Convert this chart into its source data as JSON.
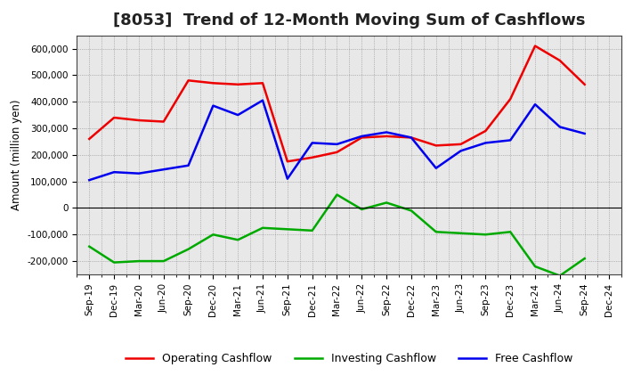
{
  "title": "[8053]  Trend of 12-Month Moving Sum of Cashflows",
  "ylabel": "Amount (million yen)",
  "plot_bg_color": "#e8e8e8",
  "fig_bg_color": "#ffffff",
  "grid_color": "#888888",
  "x_labels": [
    "Sep-19",
    "Dec-19",
    "Mar-20",
    "Jun-20",
    "Sep-20",
    "Dec-20",
    "Mar-21",
    "Jun-21",
    "Sep-21",
    "Dec-21",
    "Mar-22",
    "Jun-22",
    "Sep-22",
    "Dec-22",
    "Mar-23",
    "Jun-23",
    "Sep-23",
    "Dec-23",
    "Mar-24",
    "Jun-24",
    "Sep-24",
    "Dec-24"
  ],
  "operating_cashflow": [
    260000,
    340000,
    330000,
    325000,
    480000,
    470000,
    465000,
    470000,
    175000,
    190000,
    210000,
    265000,
    270000,
    265000,
    235000,
    240000,
    290000,
    410000,
    610000,
    555000,
    465000,
    null
  ],
  "investing_cashflow": [
    -145000,
    -205000,
    -200000,
    -200000,
    -155000,
    -100000,
    -120000,
    -75000,
    -80000,
    -85000,
    50000,
    -5000,
    20000,
    -10000,
    -90000,
    -95000,
    -100000,
    -90000,
    -220000,
    -255000,
    -190000,
    null
  ],
  "free_cashflow": [
    105000,
    135000,
    130000,
    145000,
    160000,
    385000,
    350000,
    405000,
    110000,
    245000,
    240000,
    270000,
    285000,
    265000,
    150000,
    215000,
    245000,
    255000,
    390000,
    305000,
    280000,
    null
  ],
  "ylim": [
    -250000,
    650000
  ],
  "yticks": [
    -200000,
    -100000,
    0,
    100000,
    200000,
    300000,
    400000,
    500000,
    600000
  ],
  "line_colors": {
    "operating": "#ee0000",
    "investing": "#00aa00",
    "free": "#0000ee"
  },
  "line_width": 1.8,
  "title_fontsize": 13,
  "tick_fontsize": 7.5,
  "ylabel_fontsize": 8.5,
  "legend_labels": [
    "Operating Cashflow",
    "Investing Cashflow",
    "Free Cashflow"
  ],
  "legend_fontsize": 9
}
